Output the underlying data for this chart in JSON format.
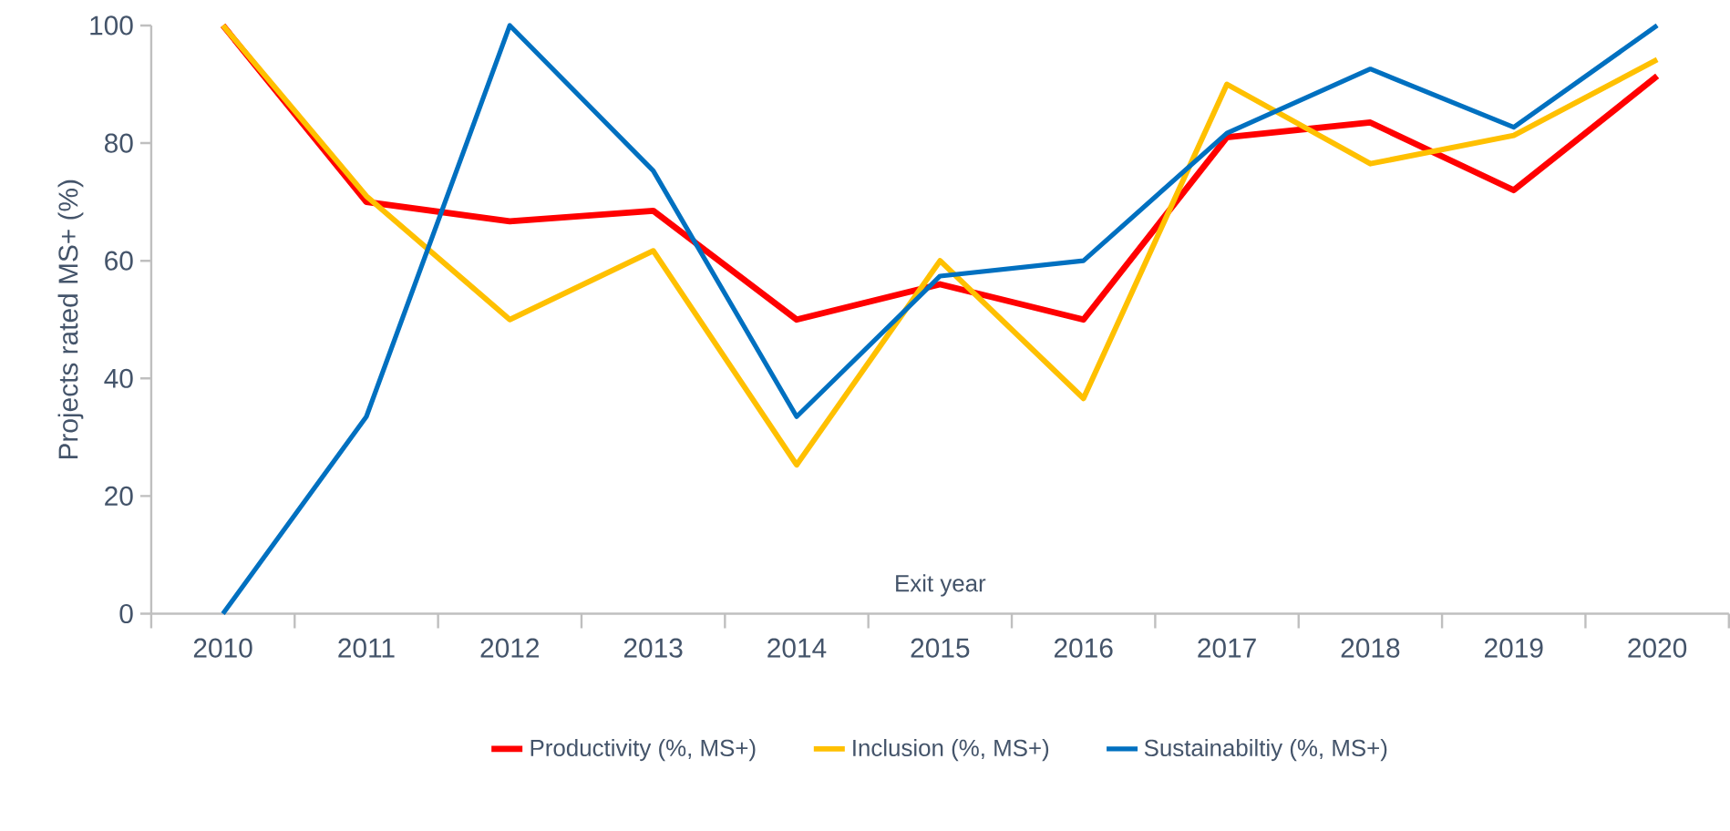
{
  "chart_data": {
    "type": "line",
    "xlabel": "Exit year",
    "ylabel": "Projects rated MS+ (%)",
    "categories": [
      "2010",
      "2011",
      "2012",
      "2013",
      "2014",
      "2015",
      "2016",
      "2017",
      "2018",
      "2019",
      "2020"
    ],
    "series": [
      {
        "name": "Productivity (%, MS+)",
        "color": "#ff0000",
        "values": [
          100,
          70,
          66.7,
          68.5,
          50,
          56,
          50,
          81,
          83.5,
          72,
          91.4
        ]
      },
      {
        "name": "Inclusion (%, MS+)",
        "color": "#ffc000",
        "values": [
          100,
          71,
          50,
          61.7,
          25.3,
          60,
          36.6,
          90,
          76.5,
          81.3,
          94.2
        ]
      },
      {
        "name": "Sustainabiltiy (%, MS+)",
        "color": "#0070c0",
        "values": [
          0,
          33.5,
          100,
          75.3,
          33.5,
          57.4,
          60,
          81.7,
          92.6,
          82.7,
          100
        ]
      }
    ],
    "ylim": [
      0,
      100
    ],
    "yticks": [
      0,
      20,
      40,
      60,
      80,
      100
    ],
    "grid": false,
    "legend": "bottom",
    "marker": "none",
    "line_style": "solid"
  }
}
